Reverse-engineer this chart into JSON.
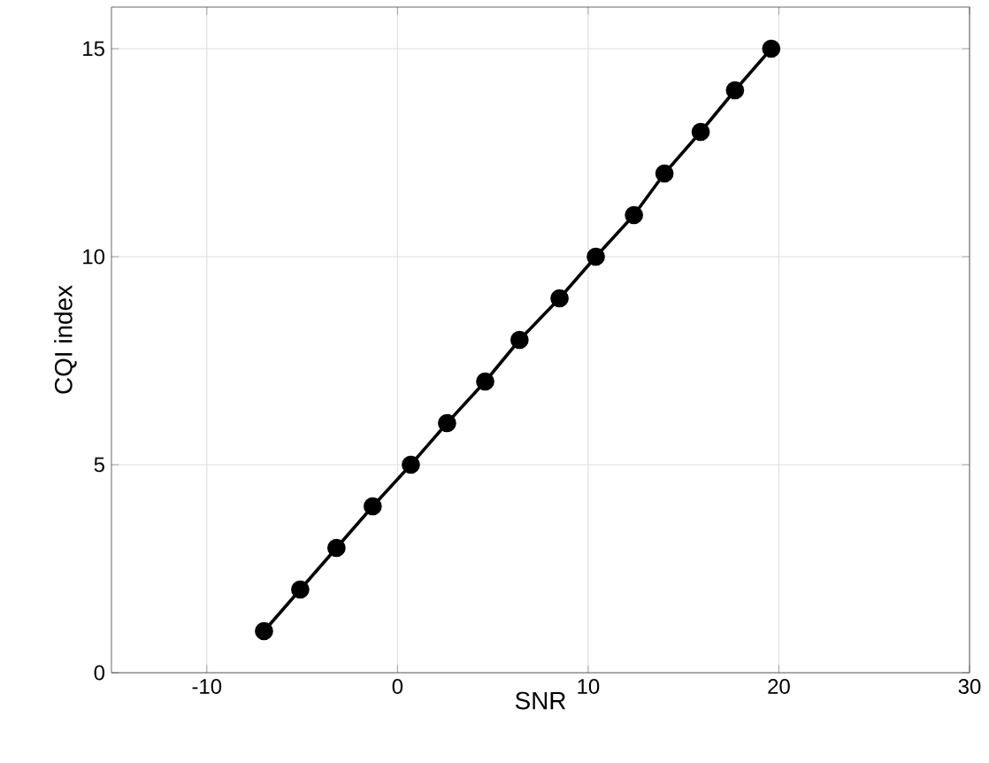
{
  "chart_data": {
    "type": "line",
    "xlabel": "SNR",
    "ylabel": "CQI index",
    "x": [
      -7.0,
      -5.1,
      -3.2,
      -1.3,
      0.7,
      2.6,
      4.6,
      6.4,
      8.5,
      10.4,
      12.4,
      14.0,
      15.9,
      17.7,
      19.6
    ],
    "series": [
      {
        "color": "#000000",
        "values": [
          1,
          2,
          3,
          4,
          5,
          6,
          7,
          8,
          9,
          10,
          11,
          12,
          13,
          14,
          15
        ]
      }
    ],
    "xlim": [
      -15,
      30
    ],
    "xticks": [
      -10,
      0,
      10,
      20,
      30
    ],
    "ylim": [
      0,
      16
    ],
    "yticks": [
      0,
      5,
      10,
      15
    ],
    "grid": true,
    "marker": "circle",
    "line_style": "solid"
  }
}
